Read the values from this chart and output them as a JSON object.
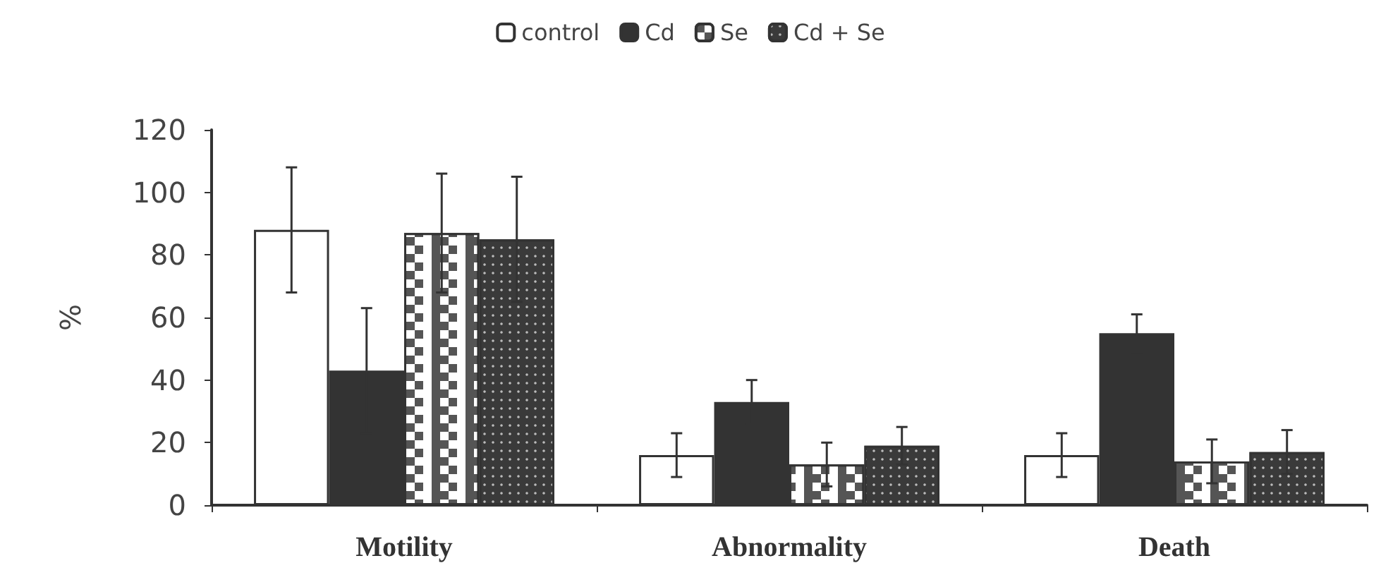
{
  "chart_data": {
    "type": "bar",
    "categories": [
      "Motility",
      "Abnormality",
      "Death"
    ],
    "ylabel": "%",
    "ylim": [
      0,
      120
    ],
    "yticks": [
      0,
      20,
      40,
      60,
      80,
      100,
      120
    ],
    "grid": false,
    "legend": "top",
    "series": [
      {
        "name": "control",
        "color": "#ffffff",
        "values": [
          88,
          16,
          16
        ],
        "errors": [
          20,
          7,
          7
        ]
      },
      {
        "name": "Cd",
        "color": "#333333",
        "values": [
          43,
          33,
          55
        ],
        "errors": [
          20,
          7,
          6
        ]
      },
      {
        "name": "Se",
        "color": "#555555",
        "values": [
          87,
          13,
          14
        ],
        "errors": [
          19,
          7,
          7
        ]
      },
      {
        "name": "Cd + Se",
        "color": "#3a3a3a",
        "values": [
          85,
          19,
          17
        ],
        "errors": [
          20,
          6,
          7
        ]
      }
    ]
  }
}
